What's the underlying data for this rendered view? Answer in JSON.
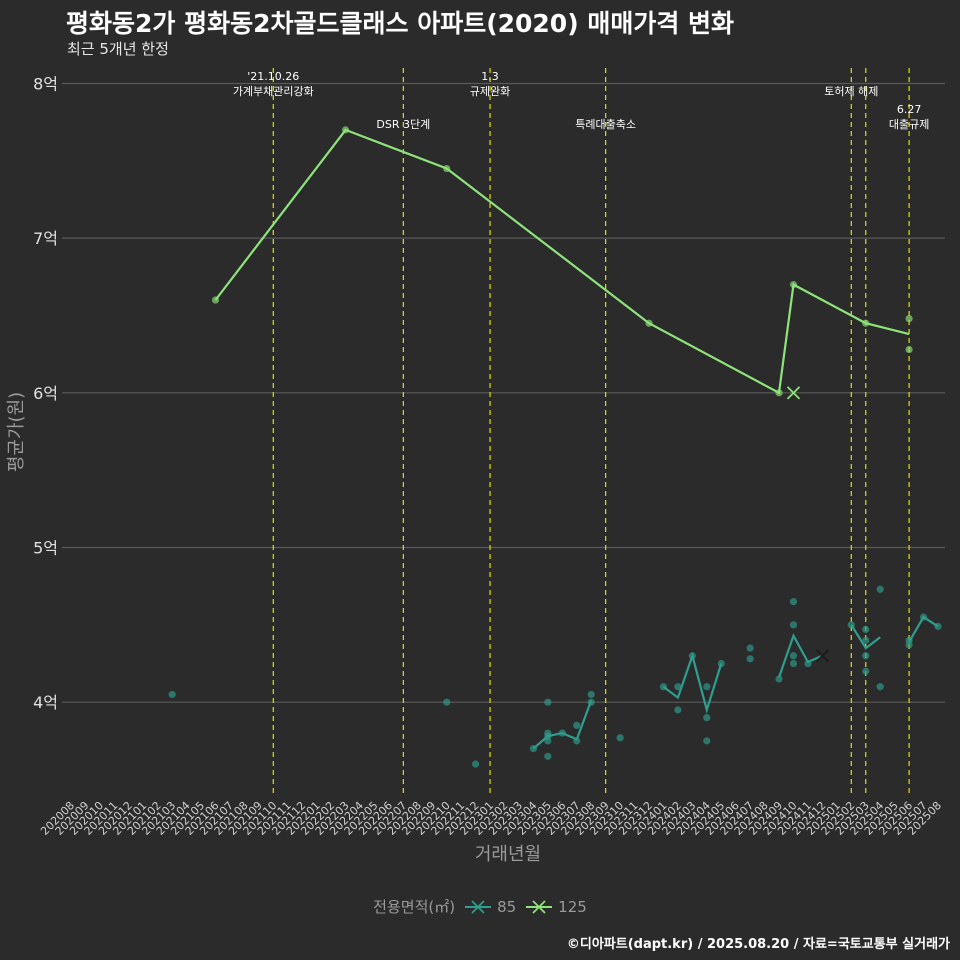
{
  "title": "평화동2가 평화동2차골드클래스 아파트(2020) 매매가격 변화",
  "subtitle": "최근 5개년 한정",
  "caption": "©디아파트(dapt.kr) / 2025.08.20 / 자료=국토교통부 실거래가",
  "colors": {
    "bg": "#2b2b2b",
    "grid": "#5a5a5a",
    "vline": "#e0e000",
    "s85": "#2e9e8e",
    "s125": "#8ee37a"
  },
  "chart_data": {
    "type": "line",
    "xlabel": "거래년월",
    "ylabel": "평균가(원)",
    "y_ticks": [
      {
        "value": 4.0,
        "label": "4억"
      },
      {
        "value": 5.0,
        "label": "5억"
      },
      {
        "value": 6.0,
        "label": "6억"
      },
      {
        "value": 7.0,
        "label": "7억"
      },
      {
        "value": 8.0,
        "label": "8억"
      }
    ],
    "ylim": [
      3.4,
      8.1
    ],
    "x_categories": [
      "202008",
      "202009",
      "202010",
      "202011",
      "202012",
      "202101",
      "202102",
      "202103",
      "202104",
      "202105",
      "202106",
      "202107",
      "202108",
      "202109",
      "202110",
      "202111",
      "202112",
      "202201",
      "202202",
      "202203",
      "202204",
      "202205",
      "202206",
      "202207",
      "202208",
      "202209",
      "202210",
      "202211",
      "202212",
      "202301",
      "202302",
      "202303",
      "202304",
      "202305",
      "202306",
      "202307",
      "202308",
      "202309",
      "202310",
      "202311",
      "202312",
      "202401",
      "202402",
      "202403",
      "202404",
      "202405",
      "202406",
      "202407",
      "202408",
      "202409",
      "202410",
      "202411",
      "202412",
      "202501",
      "202502",
      "202503",
      "202504",
      "202505",
      "202506",
      "202507",
      "202508"
    ],
    "grid": true,
    "legend_position": "bottom",
    "legend_title": "전용면적(㎡)",
    "events": [
      {
        "month": "202110",
        "label_lines": [
          "'21.10.26",
          "가계부채관리강화"
        ],
        "row": 1
      },
      {
        "month": "202207",
        "label_lines": [
          "DSR 3단계"
        ],
        "row": 2
      },
      {
        "month": "202301",
        "label_lines": [
          "1.3",
          "규제완화"
        ],
        "row": 1
      },
      {
        "month": "202309",
        "label_lines": [
          "특례대출축소"
        ],
        "row": 2
      },
      {
        "month": "202502",
        "label_lines": [
          "토허제 해제"
        ],
        "row": 1
      },
      {
        "month": "202503",
        "label_lines": [],
        "row": 1
      },
      {
        "month": "202506",
        "label_lines": [
          "6.27",
          "대출규제"
        ],
        "row": 2
      }
    ],
    "series": [
      {
        "name": "85",
        "color": "#2e9e8e",
        "points": [
          [
            "202103",
            4.05
          ],
          [
            "202210",
            4.0
          ],
          [
            "202212",
            3.6
          ],
          [
            "202304",
            3.7
          ],
          [
            "202305",
            3.65
          ],
          [
            "202305",
            3.75
          ],
          [
            "202305",
            3.78
          ],
          [
            "202305",
            3.8
          ],
          [
            "202305",
            4.0
          ],
          [
            "202306",
            3.8
          ],
          [
            "202307",
            3.75
          ],
          [
            "202307",
            3.85
          ],
          [
            "202308",
            4.0
          ],
          [
            "202308",
            4.05
          ],
          [
            "202310",
            3.77
          ],
          [
            "202401",
            4.1
          ],
          [
            "202402",
            3.95
          ],
          [
            "202402",
            4.1
          ],
          [
            "202403",
            4.3
          ],
          [
            "202404",
            3.75
          ],
          [
            "202404",
            3.9
          ],
          [
            "202404",
            4.1
          ],
          [
            "202405",
            4.25
          ],
          [
            "202407",
            4.28
          ],
          [
            "202407",
            4.35
          ],
          [
            "202409",
            4.15
          ],
          [
            "202410",
            4.25
          ],
          [
            "202410",
            4.3
          ],
          [
            "202410",
            4.5
          ],
          [
            "202410",
            4.65
          ],
          [
            "202411",
            4.25
          ],
          [
            "202502",
            4.5
          ],
          [
            "202503",
            4.2
          ],
          [
            "202503",
            4.3
          ],
          [
            "202503",
            4.4
          ],
          [
            "202503",
            4.47
          ],
          [
            "202504",
            4.1
          ],
          [
            "202504",
            4.73
          ],
          [
            "202506",
            4.37
          ],
          [
            "202506",
            4.4
          ],
          [
            "202507",
            4.55
          ],
          [
            "202508",
            4.49
          ]
        ],
        "line": [
          [
            "202304",
            3.7
          ],
          [
            "202305",
            3.78
          ],
          [
            "202306",
            3.8
          ],
          [
            "202307",
            3.76
          ],
          [
            "202308",
            4.01
          ],
          null,
          [
            "202401",
            4.1
          ],
          [
            "202402",
            4.03
          ],
          [
            "202403",
            4.3
          ],
          [
            "202404",
            3.95
          ],
          [
            "202405",
            4.25
          ],
          null,
          [
            "202409",
            4.16
          ],
          [
            "202410",
            4.43
          ],
          [
            "202411",
            4.26
          ],
          [
            "202412",
            4.3
          ],
          null,
          [
            "202502",
            4.5
          ],
          [
            "202503",
            4.35
          ],
          [
            "202504",
            4.42
          ],
          null,
          [
            "202506",
            4.39
          ],
          [
            "202507",
            4.55
          ],
          [
            "202508",
            4.49
          ]
        ],
        "cross": [
          "202412",
          4.3
        ]
      },
      {
        "name": "125",
        "color": "#8ee37a",
        "points": [
          [
            "202106",
            6.6
          ],
          [
            "202203",
            7.7
          ],
          [
            "202210",
            7.45
          ],
          [
            "202312",
            6.45
          ],
          [
            "202409",
            6.0
          ],
          [
            "202410",
            6.7
          ],
          [
            "202503",
            6.45
          ],
          [
            "202506",
            6.48
          ],
          [
            "202506",
            6.28
          ]
        ],
        "line": [
          [
            "202106",
            6.6
          ],
          [
            "202203",
            7.7
          ],
          [
            "202210",
            7.45
          ],
          [
            "202312",
            6.45
          ],
          [
            "202409",
            6.0
          ],
          [
            "202410",
            6.7
          ],
          [
            "202503",
            6.45
          ],
          [
            "202506",
            6.38
          ]
        ],
        "cross": [
          "202410",
          6.0
        ]
      }
    ]
  }
}
